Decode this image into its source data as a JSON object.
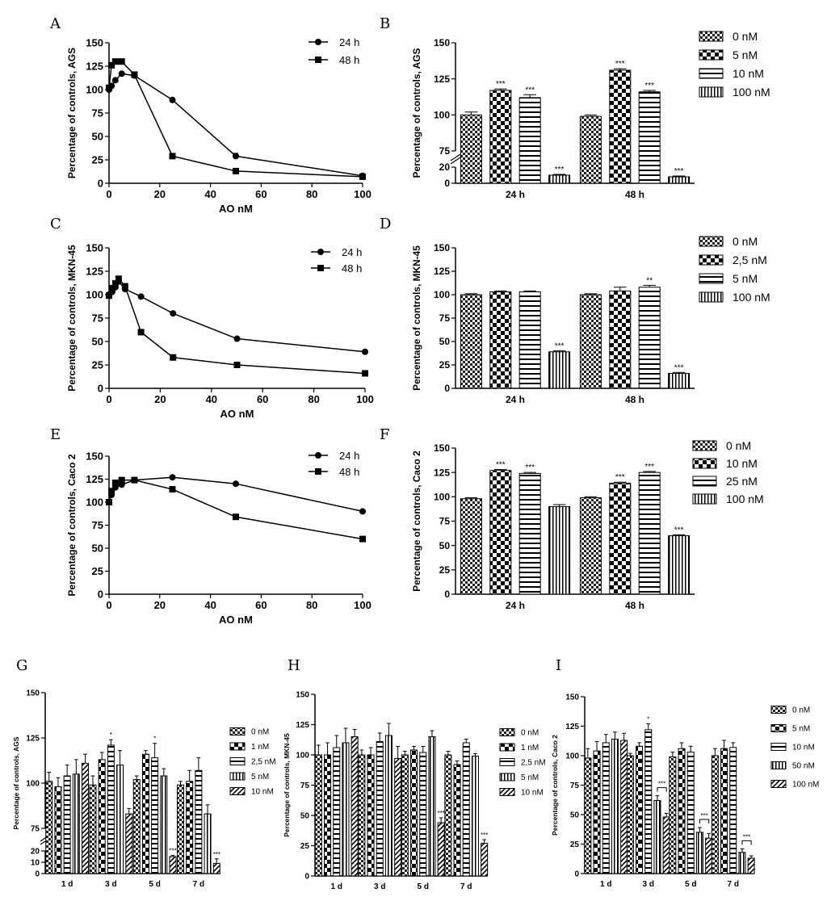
{
  "chart_data": [
    {
      "id": "A",
      "panel": "A",
      "type": "line",
      "xlabel": "AO nM",
      "ylabel": "Percentage of controls, AGS",
      "xlim": [
        0,
        100
      ],
      "ylim": [
        0,
        150
      ],
      "xticks": [
        0,
        20,
        40,
        60,
        80,
        100
      ],
      "yticks": [
        0,
        25,
        50,
        75,
        100,
        125,
        150
      ],
      "legend_position": "top-right",
      "series": [
        {
          "name": "24 h",
          "marker": "circle",
          "x": [
            0,
            1,
            2.5,
            5,
            10,
            25,
            50,
            100
          ],
          "y": [
            100,
            104,
            110,
            117,
            115,
            89,
            29,
            8
          ],
          "err": [
            3,
            2,
            2,
            2,
            2,
            2,
            3,
            2
          ]
        },
        {
          "name": "48 h",
          "marker": "square",
          "x": [
            0,
            1,
            2.5,
            5,
            10,
            25,
            50,
            100
          ],
          "y": [
            102,
            126,
            130,
            130,
            116,
            29,
            13,
            7
          ],
          "err": [
            2,
            2,
            2,
            2,
            2,
            2,
            2,
            1
          ]
        }
      ]
    },
    {
      "id": "B",
      "panel": "B",
      "type": "bar",
      "xlabel": "",
      "ylabel": "Percentage of controls, AGS",
      "axis_break": [
        20,
        75
      ],
      "yticks_lower": [
        0,
        20
      ],
      "yticks_upper": [
        75,
        100,
        125,
        150
      ],
      "legend_position": "top-right",
      "categories": [
        "24 h",
        "48 h"
      ],
      "series": [
        {
          "name": "0 nM",
          "pattern": "checker",
          "values": [
            100,
            99
          ],
          "err": [
            2,
            1
          ],
          "sig": [
            "",
            ""
          ]
        },
        {
          "name": "5 nM",
          "pattern": "bigchecker",
          "values": [
            117,
            131
          ],
          "err": [
            1,
            1
          ],
          "sig": [
            "***",
            "***"
          ]
        },
        {
          "name": "10 nM",
          "pattern": "hstripe",
          "values": [
            112,
            116
          ],
          "err": [
            2,
            1
          ],
          "sig": [
            "***",
            "***"
          ]
        },
        {
          "name": "100 nM",
          "pattern": "vstripe",
          "values": [
            10,
            8
          ],
          "err": [
            1,
            1
          ],
          "sig": [
            "***",
            "***"
          ]
        }
      ]
    },
    {
      "id": "C",
      "panel": "C",
      "type": "line",
      "xlabel": "AO nM",
      "ylabel": "Percentage of controls, MKN-45",
      "xlim": [
        0,
        100
      ],
      "ylim": [
        0,
        150
      ],
      "xticks": [
        0,
        20,
        40,
        60,
        80,
        100
      ],
      "yticks": [
        0,
        25,
        50,
        75,
        100,
        125,
        150
      ],
      "legend_position": "top-right",
      "series": [
        {
          "name": "24 h",
          "marker": "circle",
          "x": [
            0,
            1.25,
            2.5,
            3.75,
            6.25,
            12.5,
            25,
            50,
            100
          ],
          "y": [
            100,
            103,
            108,
            114,
            106,
            98,
            80,
            53,
            39
          ],
          "err": [
            2,
            2,
            2,
            2,
            2,
            2,
            2,
            1,
            1
          ]
        },
        {
          "name": "48 h",
          "marker": "square",
          "x": [
            0,
            1.25,
            2.5,
            3.75,
            6.25,
            12.5,
            25,
            50,
            100
          ],
          "y": [
            99,
            107,
            112,
            117,
            109,
            60,
            33,
            25,
            16
          ],
          "err": [
            2,
            2,
            2,
            2,
            2,
            2,
            1,
            1,
            1
          ]
        }
      ]
    },
    {
      "id": "D",
      "panel": "D",
      "type": "bar",
      "xlabel": "",
      "ylabel": "Percentage of controls, MKN-45",
      "ylim": [
        0,
        150
      ],
      "yticks": [
        0,
        25,
        50,
        75,
        100,
        125,
        150
      ],
      "legend_position": "top-right",
      "categories": [
        "24 h",
        "48 h"
      ],
      "series": [
        {
          "name": "0 nM",
          "pattern": "checker",
          "values": [
            100,
            100
          ],
          "err": [
            1,
            1
          ],
          "sig": [
            "",
            ""
          ]
        },
        {
          "name": "2,5 nM",
          "pattern": "bigchecker",
          "values": [
            103,
            104
          ],
          "err": [
            1,
            4
          ],
          "sig": [
            "",
            ""
          ]
        },
        {
          "name": "5 nM",
          "pattern": "hstripe",
          "values": [
            103,
            108
          ],
          "err": [
            1,
            2
          ],
          "sig": [
            "",
            "**"
          ]
        },
        {
          "name": "100 nM",
          "pattern": "vstripe",
          "values": [
            39,
            16
          ],
          "err": [
            1,
            1
          ],
          "sig": [
            "***",
            "***"
          ]
        }
      ]
    },
    {
      "id": "E",
      "panel": "E",
      "type": "line",
      "xlabel": "AO nM",
      "ylabel": "Percentage of controls, Caco 2",
      "xlim": [
        0,
        100
      ],
      "ylim": [
        0,
        150
      ],
      "xticks": [
        0,
        20,
        40,
        60,
        80,
        100
      ],
      "yticks": [
        0,
        25,
        50,
        75,
        100,
        125,
        150
      ],
      "legend_position": "top-right",
      "series": [
        {
          "name": "24 h",
          "marker": "circle",
          "x": [
            0,
            1,
            2.5,
            5,
            10,
            25,
            50,
            100
          ],
          "y": [
            100,
            108,
            116,
            119,
            124,
            127,
            120,
            90
          ],
          "err": [
            2,
            2,
            2,
            2,
            1,
            1,
            1,
            1
          ]
        },
        {
          "name": "48 h",
          "marker": "square",
          "x": [
            0,
            1,
            2.5,
            5,
            10,
            25,
            50,
            100
          ],
          "y": [
            100,
            112,
            121,
            124,
            124,
            114,
            84,
            60
          ],
          "err": [
            2,
            2,
            2,
            2,
            1,
            1,
            1,
            1
          ]
        }
      ]
    },
    {
      "id": "F",
      "panel": "F",
      "type": "bar",
      "xlabel": "",
      "ylabel": "Percentage of controls, Caco 2",
      "ylim": [
        0,
        150
      ],
      "yticks": [
        0,
        25,
        50,
        75,
        100,
        125,
        150
      ],
      "legend_position": "top-right",
      "categories": [
        "24 h",
        "48 h"
      ],
      "series": [
        {
          "name": "0 nM",
          "pattern": "checker",
          "values": [
            98,
            99
          ],
          "err": [
            1,
            1
          ],
          "sig": [
            "",
            ""
          ]
        },
        {
          "name": "10 nM",
          "pattern": "bigchecker",
          "values": [
            127,
            114
          ],
          "err": [
            1,
            1
          ],
          "sig": [
            "***",
            "***"
          ]
        },
        {
          "name": "25 nM",
          "pattern": "hstripe",
          "values": [
            124,
            125
          ],
          "err": [
            1,
            1
          ],
          "sig": [
            "***",
            "***"
          ]
        },
        {
          "name": "100 nM",
          "pattern": "vstripe",
          "values": [
            90,
            60
          ],
          "err": [
            2,
            1
          ],
          "sig": [
            "",
            "***"
          ]
        }
      ]
    },
    {
      "id": "G",
      "panel": "G",
      "type": "bar",
      "xlabel": "",
      "ylabel": "Percentage of controls, AGS",
      "axis_break": [
        20,
        75
      ],
      "yticks_lower": [
        0,
        10,
        20
      ],
      "yticks_upper": [
        75,
        100,
        125,
        150
      ],
      "legend_position": "right",
      "categories": [
        "1 d",
        "3 d",
        "5 d",
        "7 d"
      ],
      "series": [
        {
          "name": "0 nM",
          "pattern": "checker",
          "values": [
            101,
            99,
            102,
            99
          ],
          "err": [
            5,
            5,
            2,
            2
          ],
          "sig": [
            "",
            "",
            "",
            ""
          ]
        },
        {
          "name": "1 nM",
          "pattern": "bigchecker",
          "values": [
            98,
            113,
            116,
            101
          ],
          "err": [
            5,
            4,
            2,
            6
          ],
          "sig": [
            "",
            "",
            "",
            ""
          ]
        },
        {
          "name": "2,5 nM",
          "pattern": "hstripe",
          "values": [
            104,
            121,
            114,
            107
          ],
          "err": [
            6,
            3,
            8,
            7
          ],
          "sig": [
            "",
            "*",
            "*",
            ""
          ]
        },
        {
          "name": "5 nM",
          "pattern": "vstripe",
          "values": [
            105,
            110,
            104,
            83
          ],
          "err": [
            8,
            8,
            4,
            5
          ],
          "sig": [
            "",
            "",
            "",
            ""
          ]
        },
        {
          "name": "10 nM",
          "pattern": "diag",
          "values": [
            111,
            83,
            15,
            9
          ],
          "err": [
            5,
            3,
            1,
            4
          ],
          "sig": [
            "",
            "",
            "***",
            "***"
          ]
        }
      ]
    },
    {
      "id": "H",
      "panel": "H",
      "type": "bar",
      "xlabel": "",
      "ylabel": "Percentage of controls, MKN-45",
      "ylim": [
        0,
        150
      ],
      "yticks": [
        0,
        25,
        50,
        75,
        100,
        125,
        150
      ],
      "legend_position": "right",
      "categories": [
        "1 d",
        "3 d",
        "5 d",
        "7 d"
      ],
      "series": [
        {
          "name": "0 nM",
          "pattern": "checker",
          "values": [
            100,
            100,
            100,
            100
          ],
          "err": [
            8,
            4,
            3,
            3
          ],
          "sig": [
            "",
            "",
            "",
            ""
          ]
        },
        {
          "name": "1 nM",
          "pattern": "bigchecker",
          "values": [
            100,
            100,
            104,
            92
          ],
          "err": [
            10,
            6,
            3,
            3
          ],
          "sig": [
            "",
            "",
            "",
            ""
          ]
        },
        {
          "name": "2,5 nM",
          "pattern": "hstripe",
          "values": [
            106,
            111,
            102,
            110
          ],
          "err": [
            10,
            7,
            5,
            3
          ],
          "sig": [
            "",
            "",
            "",
            ""
          ]
        },
        {
          "name": "5 nM",
          "pattern": "vstripe",
          "values": [
            110,
            116,
            115,
            99
          ],
          "err": [
            12,
            10,
            5,
            2
          ],
          "sig": [
            "",
            "",
            "",
            ""
          ]
        },
        {
          "name": "10 nM",
          "pattern": "diag",
          "values": [
            115,
            97,
            44,
            27
          ],
          "err": [
            6,
            10,
            4,
            3
          ],
          "sig": [
            "",
            "",
            "***",
            "***"
          ]
        }
      ]
    },
    {
      "id": "I",
      "panel": "I",
      "type": "bar",
      "xlabel": "",
      "ylabel": "Percentage of controls, Caco 2",
      "ylim": [
        0,
        150
      ],
      "yticks": [
        0,
        25,
        50,
        75,
        100,
        125,
        150
      ],
      "legend_position": "right",
      "categories": [
        "1 d",
        "3 d",
        "5 d",
        "7 d"
      ],
      "series": [
        {
          "name": "0 nM",
          "pattern": "checker",
          "values": [
            98,
            100,
            99,
            100
          ],
          "err": [
            8,
            2,
            4,
            6
          ],
          "sig": [
            "",
            "",
            "",
            ""
          ]
        },
        {
          "name": "5 nM",
          "pattern": "bigchecker",
          "values": [
            104,
            108,
            106,
            106
          ],
          "err": [
            8,
            3,
            5,
            7
          ],
          "sig": [
            "",
            "",
            "",
            ""
          ]
        },
        {
          "name": "10 nM",
          "pattern": "hstripe",
          "values": [
            111,
            122,
            103,
            107
          ],
          "err": [
            7,
            5,
            5,
            4
          ],
          "sig": [
            "",
            "*",
            "",
            ""
          ]
        },
        {
          "name": "50 nM",
          "pattern": "vstripe",
          "values": [
            114,
            62,
            35,
            18
          ],
          "err": [
            6,
            4,
            4,
            3
          ],
          "sig": [
            "",
            "",
            "",
            ""
          ]
        },
        {
          "name": "100 nM",
          "pattern": "diag",
          "values": [
            113,
            48,
            30,
            13
          ],
          "err": [
            6,
            3,
            4,
            2
          ],
          "sig": [
            "",
            "",
            "",
            ""
          ]
        }
      ],
      "brackets": [
        {
          "category": 1,
          "from_series": 3,
          "to_series": 4,
          "label": "***"
        },
        {
          "category": 2,
          "from_series": 3,
          "to_series": 4,
          "label": "***"
        },
        {
          "category": 3,
          "from_series": 3,
          "to_series": 4,
          "label": "***"
        }
      ]
    }
  ]
}
